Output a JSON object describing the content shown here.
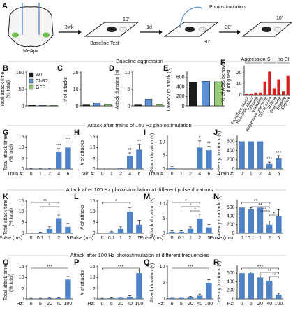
{
  "schematic": {
    "panel": "A",
    "region": "MeApv",
    "step1": "3wk",
    "cage1": "Baseline Test",
    "dur1": "10'",
    "step2": "1d",
    "stim": "Photostimulation",
    "dur2": "30'",
    "step3": "30'",
    "dur3": "10'"
  },
  "sections": [
    "Baseline aggression",
    "Attack after trains of 100 Hz photostimulation",
    "Attack after 100 Hz photostimulation at different pulse durations",
    "Attack after 100 Hz photostimulation at different frequencies"
  ],
  "chart_data": [
    {
      "type": "bar",
      "panel": "B",
      "ylabel": [
        "Total attack time",
        "(% total)"
      ],
      "ylim": [
        0,
        100
      ],
      "yticks": [
        0,
        50,
        100
      ],
      "legend": true,
      "series": [
        {
          "name": "WT",
          "color": "#1a1a1a",
          "values": [
            3
          ]
        },
        {
          "name": "ChR2",
          "color": "#5b8fd6",
          "values": [
            2
          ]
        },
        {
          "name": "GFP",
          "color": "#9acd7a",
          "values": [
            2
          ]
        }
      ]
    },
    {
      "type": "bar",
      "panel": "C",
      "ylabel": "# of attacks",
      "ylim": [
        0,
        20
      ],
      "yticks": [
        0,
        10,
        20
      ],
      "series": [
        {
          "color": "#1a1a1a",
          "values": [
            1
          ]
        },
        {
          "color": "#5b8fd6",
          "values": [
            2
          ]
        },
        {
          "color": "#9acd7a",
          "values": [
            1
          ]
        }
      ]
    },
    {
      "type": "bar",
      "panel": "D",
      "ylabel": "Attack duration (s)",
      "ylim": [
        0,
        10
      ],
      "yticks": [
        0,
        5,
        10
      ],
      "series": [
        {
          "color": "#1a1a1a",
          "values": [
            0.5
          ]
        },
        {
          "color": "#5b8fd6",
          "values": [
            2
          ]
        },
        {
          "color": "#9acd7a",
          "values": [
            0.5
          ]
        }
      ]
    },
    {
      "type": "bar",
      "panel": "E",
      "ylabel": "Latency to attack (s)",
      "ylim": [
        0,
        700
      ],
      "yticks": [
        0,
        200,
        400,
        600
      ],
      "series": [
        {
          "color": "#1a1a1a",
          "values": [
            500
          ]
        },
        {
          "color": "#5b8fd6",
          "values": [
            520
          ]
        },
        {
          "color": "#9acd7a",
          "values": [
            510
          ]
        }
      ]
    },
    {
      "type": "bar",
      "panel": "F",
      "ylabel": [
        "% of AGG behavior",
        "during test"
      ],
      "ylim": [
        0,
        25
      ],
      "yticks": [
        0,
        10,
        20
      ],
      "color": "#d42020",
      "categories": [
        "Front/face attack",
        "Rear/side attack",
        "Chasing",
        "Wrestling",
        "Aggressive grooming",
        "Social exam",
        "Sniffing",
        "Grooming",
        "Digging",
        "Explore"
      ],
      "values": [
        1,
        1,
        2,
        2,
        12,
        21,
        6,
        14,
        3,
        17
      ],
      "groups": [
        {
          "text": "Aggression",
          "from": "Front/face attack",
          "to": "Wrestling"
        },
        {
          "text": "SI",
          "from": "Aggressive grooming",
          "to": "Sniffing"
        },
        {
          "text": "no SI",
          "from": "Grooming",
          "to": "Explore"
        }
      ]
    },
    {
      "type": "bar",
      "panel": "G",
      "ylabel": [
        "Total attack time",
        "(% total)"
      ],
      "xlabel": "Train #:",
      "color": "#4f81c7",
      "ylim": [
        0,
        15
      ],
      "yticks": [
        0,
        5,
        10,
        15
      ],
      "categories": [
        "0",
        "1",
        "2",
        "4",
        "6"
      ],
      "values": [
        0.2,
        0.2,
        0.2,
        8,
        10
      ],
      "errors": [
        0.1,
        0.1,
        0.1,
        1.5,
        2.5
      ],
      "stars": [
        {
          "text": "***",
          "category": "4"
        },
        {
          "text": "***",
          "category": "6"
        }
      ]
    },
    {
      "type": "bar",
      "panel": "H",
      "ylabel": "# of attacks",
      "xlabel": "Train #:",
      "color": "#4f81c7",
      "ylim": [
        0,
        15
      ],
      "yticks": [
        0,
        5,
        10,
        15
      ],
      "categories": [
        "0",
        "1",
        "2",
        "4",
        "6"
      ],
      "values": [
        0,
        0,
        0.3,
        6,
        9
      ],
      "errors": [
        0,
        0,
        0.2,
        1.5,
        2.5
      ],
      "stars": [
        {
          "text": "**",
          "category": "4"
        },
        {
          "text": "**",
          "category": "6"
        }
      ]
    },
    {
      "type": "bar",
      "panel": "I",
      "ylabel": "Attack duration (s)",
      "xlabel": "Train #:",
      "color": "#4f81c7",
      "ylim": [
        0,
        12
      ],
      "yticks": [
        0,
        5,
        10
      ],
      "categories": [
        "0",
        "1",
        "2",
        "4",
        "6"
      ],
      "values": [
        0.5,
        0,
        0,
        8,
        7
      ],
      "errors": [
        0.4,
        0,
        0,
        2.5,
        1.5
      ],
      "stars": [
        {
          "text": "*",
          "category": "4"
        },
        {
          "text": "**",
          "category": "6"
        }
      ]
    },
    {
      "type": "bar",
      "panel": "J",
      "ylabel": "Latency to attack (s)",
      "xlabel": "Train #:",
      "color": "#4f81c7",
      "ylim": [
        0,
        700
      ],
      "yticks": [
        0,
        200,
        400,
        600
      ],
      "categories": [
        "0",
        "1",
        "2",
        "4",
        "6"
      ],
      "values": [
        600,
        600,
        600,
        110,
        230
      ],
      "errors": [
        0,
        0,
        0,
        40,
        60
      ],
      "stars": [
        {
          "text": "***",
          "category": "4"
        },
        {
          "text": "***",
          "category": "6"
        }
      ]
    },
    {
      "type": "bar",
      "panel": "K",
      "ylabel": [
        "Total attack time",
        "(% total)"
      ],
      "xlabel": "Pulse (ms):",
      "color": "#4f81c7",
      "ylim": [
        0,
        15
      ],
      "yticks": [
        0,
        5,
        10,
        15
      ],
      "categories": [
        "0",
        "0.1",
        "1",
        "2",
        "5"
      ],
      "values": [
        0.1,
        0.3,
        2,
        7,
        3
      ],
      "errors": [
        0.1,
        0.2,
        1,
        1.5,
        1.5
      ],
      "brackets": [
        {
          "text": "**",
          "from": "0",
          "to": "2"
        },
        {
          "text": "*",
          "from": "0.1",
          "to": "2"
        }
      ]
    },
    {
      "type": "bar",
      "panel": "L",
      "ylabel": "# of attacks",
      "xlabel": "Pulse (ms):",
      "color": "#4f81c7",
      "ylim": [
        0,
        15
      ],
      "yticks": [
        0,
        5,
        10,
        15
      ],
      "categories": [
        "0",
        "0.1",
        "1",
        "2",
        "5"
      ],
      "values": [
        0,
        0.5,
        2,
        10,
        4
      ],
      "errors": [
        0,
        0.3,
        1,
        2,
        2
      ],
      "brackets": [
        {
          "text": "*",
          "from": "0",
          "to": "2"
        }
      ]
    },
    {
      "type": "bar",
      "panel": "M",
      "ylabel": "Attack duration (s)",
      "xlabel": "Pulse (ms):",
      "color": "#4f81c7",
      "ylim": [
        0,
        11
      ],
      "yticks": [
        0,
        5,
        10
      ],
      "categories": [
        "0",
        "0.1",
        "1",
        "2",
        "5"
      ],
      "values": [
        0.5,
        0.5,
        1.5,
        5,
        2
      ],
      "errors": [
        0.3,
        0.3,
        0.7,
        1.5,
        1
      ],
      "brackets": [
        {
          "text": "*",
          "from": "0",
          "to": "2"
        },
        {
          "text": "*",
          "from": "0.1",
          "to": "2"
        },
        {
          "text": "*",
          "from": "1",
          "to": "2"
        }
      ]
    },
    {
      "type": "bar",
      "panel": "N",
      "ylabel": "Latency to attack (s)",
      "xlabel": "Pulse (ms):",
      "color": "#4f81c7",
      "ylim": [
        0,
        750
      ],
      "yticks": [
        0,
        200,
        400,
        600
      ],
      "categories": [
        "0",
        "0.1",
        "1",
        "2",
        "5"
      ],
      "values": [
        600,
        560,
        600,
        200,
        400
      ],
      "errors": [
        0,
        40,
        0,
        80,
        150
      ],
      "brackets": [
        {
          "text": "**",
          "from": "0",
          "to": "2"
        },
        {
          "text": "**",
          "from": "0.1",
          "to": "2"
        },
        {
          "text": "**",
          "from": "1",
          "to": "2"
        },
        {
          "text": "*",
          "from": "2",
          "to": "5"
        }
      ]
    },
    {
      "type": "bar",
      "panel": "O",
      "ylabel": [
        "Total attack time",
        "(% total)"
      ],
      "xlabel": "Hz:",
      "color": "#4f81c7",
      "ylim": [
        0,
        15
      ],
      "yticks": [
        0,
        5,
        10,
        15
      ],
      "categories": [
        "0",
        "5",
        "20",
        "40",
        "100"
      ],
      "values": [
        0.2,
        0.2,
        0.3,
        0.4,
        9
      ],
      "errors": [
        0.1,
        0.1,
        0.1,
        0.2,
        1.5
      ],
      "brackets": [
        {
          "text": "***",
          "from": "0",
          "to": "100"
        }
      ]
    },
    {
      "type": "bar",
      "panel": "P",
      "ylabel": "# of attacks",
      "xlabel": "Hz:",
      "color": "#4f81c7",
      "ylim": [
        0,
        15
      ],
      "yticks": [
        0,
        5,
        10,
        15
      ],
      "categories": [
        "0",
        "5",
        "20",
        "40",
        "100"
      ],
      "values": [
        0.2,
        0.3,
        0.5,
        1,
        12
      ],
      "errors": [
        0.1,
        0.2,
        0.3,
        0.5,
        1.5
      ],
      "brackets": [
        {
          "text": "***",
          "from": "0",
          "to": "100"
        }
      ]
    },
    {
      "type": "bar",
      "panel": "Q",
      "ylabel": "Attack duration (s)",
      "xlabel": "Hz:",
      "color": "#4f81c7",
      "ylim": [
        0,
        10
      ],
      "yticks": [
        0,
        5,
        10
      ],
      "categories": [
        "0",
        "5",
        "20",
        "40",
        "100"
      ],
      "values": [
        0.3,
        0.3,
        0.5,
        1,
        5
      ],
      "errors": [
        0.2,
        0.2,
        0.3,
        0.5,
        1
      ],
      "brackets": [
        {
          "text": "***",
          "from": "0",
          "to": "100"
        }
      ]
    },
    {
      "type": "bar",
      "panel": "R",
      "ylabel": "Latency to attack (s)",
      "xlabel": "Hz:",
      "color": "#4f81c7",
      "ylim": [
        0,
        750
      ],
      "yticks": [
        0,
        200,
        400,
        600
      ],
      "categories": [
        "0",
        "5",
        "20",
        "40",
        "100"
      ],
      "values": [
        600,
        600,
        500,
        420,
        100
      ],
      "errors": [
        0,
        30,
        80,
        90,
        30
      ],
      "brackets": [
        {
          "text": "***",
          "from": "0",
          "to": "100"
        },
        {
          "text": "**",
          "from": "20",
          "to": "100"
        },
        {
          "text": "**",
          "from": "40",
          "to": "100"
        }
      ]
    }
  ]
}
